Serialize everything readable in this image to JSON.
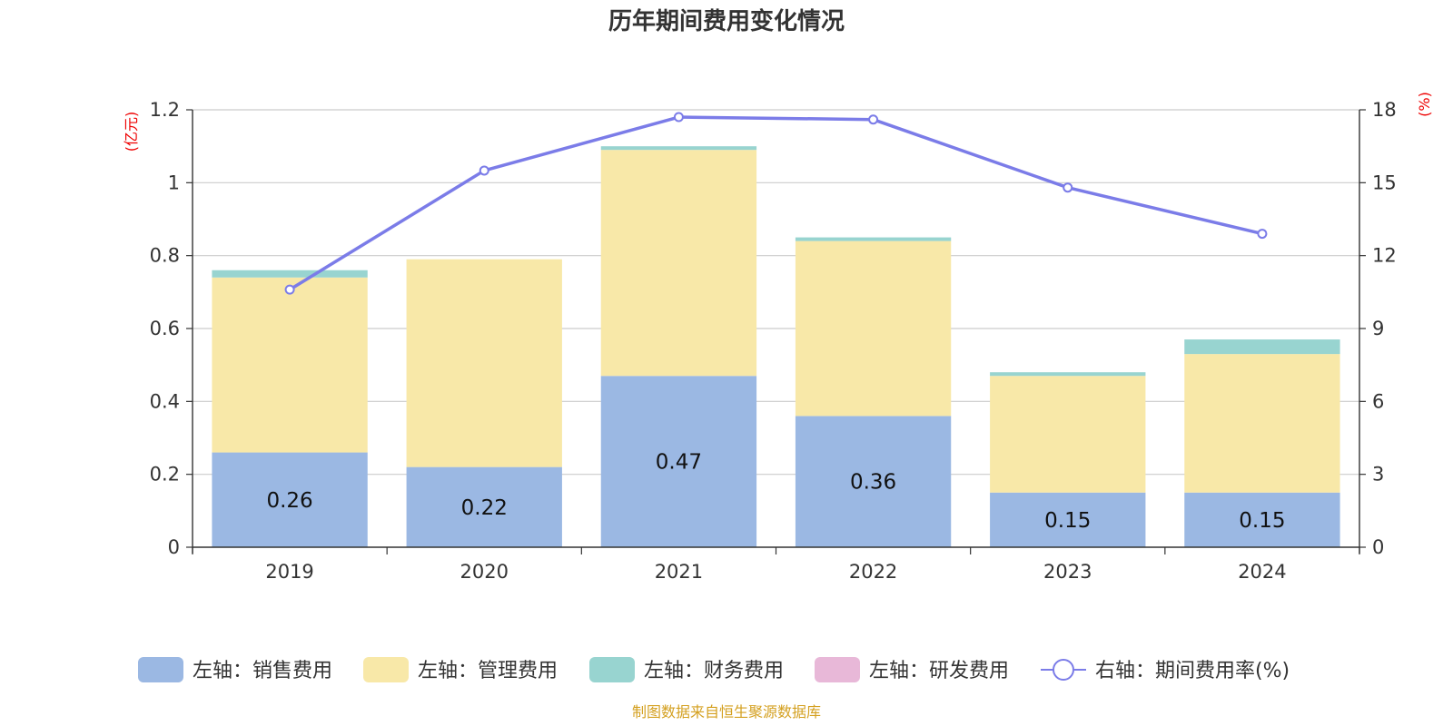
{
  "source": "制图数据来自恒生聚源数据库",
  "colors": {
    "sales": "#9bb8e3",
    "admin": "#f8e8a8",
    "finance": "#98d4d0",
    "rnd": "#e8b8d8",
    "rate": "#7b7ce8",
    "grid": "#cccccc",
    "axis": "#333333"
  },
  "chart_data": {
    "type": "bar",
    "stacked": true,
    "title": "历年期间费用变化情况",
    "categories": [
      "2019",
      "2020",
      "2021",
      "2022",
      "2023",
      "2024"
    ],
    "y_left": {
      "unit": "(亿元)",
      "ylim": [
        0,
        1.2
      ],
      "ticks": [
        "0",
        "0.2",
        "0.4",
        "0.6",
        "0.8",
        "1",
        "1.2"
      ]
    },
    "y_right": {
      "unit": "(%)",
      "ylim": [
        0,
        18
      ],
      "ticks": [
        "0",
        "3",
        "6",
        "9",
        "12",
        "15",
        "18"
      ]
    },
    "grid": true,
    "legend_position": "bottom",
    "series": [
      {
        "key": "sales",
        "name": "左轴：销售费用",
        "axis": "left",
        "type": "bar",
        "values": [
          0.26,
          0.22,
          0.47,
          0.36,
          0.15,
          0.15
        ],
        "labels": [
          "0.26",
          "0.22",
          "0.47",
          "0.36",
          "0.15",
          "0.15"
        ]
      },
      {
        "key": "admin",
        "name": "左轴：管理费用",
        "axis": "left",
        "type": "bar",
        "values": [
          0.48,
          0.57,
          0.62,
          0.48,
          0.32,
          0.38
        ]
      },
      {
        "key": "finance",
        "name": "左轴：财务费用",
        "axis": "left",
        "type": "bar",
        "values": [
          0.02,
          0.0,
          0.01,
          0.01,
          0.01,
          0.04
        ]
      },
      {
        "key": "rnd",
        "name": "左轴：研发费用",
        "axis": "left",
        "type": "bar",
        "values": [
          0,
          0,
          0,
          0,
          0,
          0
        ]
      },
      {
        "key": "rate",
        "name": "右轴：期间费用率(%)",
        "axis": "right",
        "type": "line",
        "values": [
          10.6,
          15.5,
          17.7,
          17.6,
          14.8,
          12.9
        ]
      }
    ]
  }
}
